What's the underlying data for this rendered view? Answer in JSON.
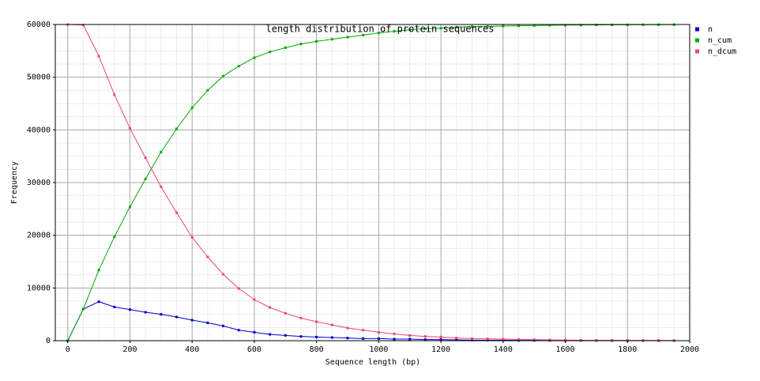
{
  "chart_data": {
    "type": "line",
    "title": "length distribution of protein sequences",
    "xlabel": "Sequence length (bp)",
    "ylabel": "Frequency",
    "x": [
      0,
      50,
      100,
      150,
      200,
      250,
      300,
      350,
      400,
      450,
      500,
      550,
      600,
      650,
      700,
      750,
      800,
      850,
      900,
      950,
      1000,
      1050,
      1100,
      1150,
      1200,
      1250,
      1300,
      1350,
      1400,
      1450,
      1500,
      1550,
      1600,
      1650,
      1700,
      1750,
      1800,
      1850,
      1900,
      1950
    ],
    "series": [
      {
        "name": "n",
        "color": "#0000cc",
        "values": [
          0,
          6000,
          7400,
          6400,
          5900,
          5400,
          5000,
          4500,
          3900,
          3400,
          2800,
          2000,
          1600,
          1200,
          1000,
          800,
          700,
          600,
          500,
          400,
          400,
          300,
          300,
          200,
          200,
          150,
          100,
          100,
          100,
          50,
          50,
          50,
          50,
          40,
          30,
          20,
          20,
          10,
          10,
          10
        ]
      },
      {
        "name": "n_cum",
        "color": "#00aa00",
        "values": [
          0,
          6000,
          13400,
          19700,
          25400,
          30700,
          35800,
          40200,
          44200,
          47500,
          50200,
          52100,
          53700,
          54800,
          55600,
          56300,
          56800,
          57200,
          57600,
          58000,
          58400,
          58700,
          59000,
          59200,
          59300,
          59500,
          59600,
          59650,
          59700,
          59750,
          59800,
          59850,
          59880,
          59900,
          59920,
          59940,
          59950,
          59960,
          59970,
          59980
        ]
      },
      {
        "name": "n_dcum",
        "color": "#ee4477",
        "values": [
          60000,
          59900,
          54000,
          46700,
          40300,
          34700,
          29200,
          24300,
          19600,
          15900,
          12600,
          9900,
          7800,
          6300,
          5200,
          4300,
          3600,
          3000,
          2400,
          2000,
          1600,
          1300,
          1000,
          800,
          700,
          500,
          400,
          350,
          300,
          250,
          200,
          150,
          120,
          100,
          80,
          60,
          50,
          40,
          30,
          20
        ]
      }
    ],
    "xlim": [
      -40,
      2000
    ],
    "xticks": [
      0,
      200,
      400,
      600,
      800,
      1000,
      1200,
      1400,
      1600,
      1800,
      2000
    ],
    "ylim": [
      0,
      60000
    ],
    "yticks": [
      0,
      10000,
      20000,
      30000,
      40000,
      50000,
      60000
    ],
    "grid": true,
    "legend": "right"
  }
}
